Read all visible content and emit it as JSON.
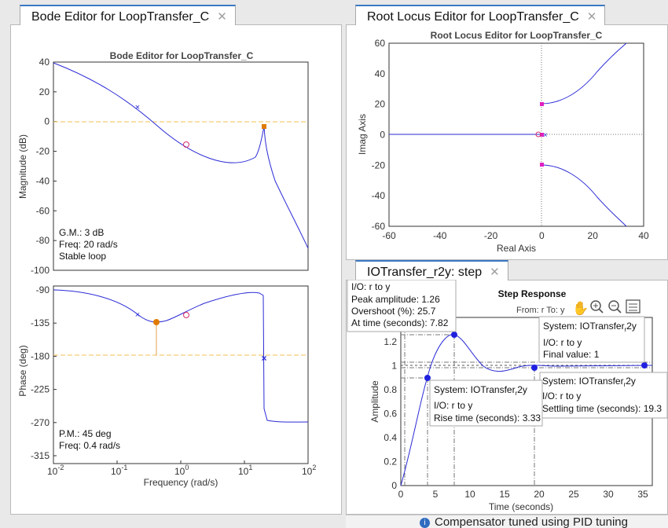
{
  "bode_tab": {
    "title": "Bode Editor for LoopTransfer_C",
    "close": "✕"
  },
  "rlocus_tab": {
    "title": "Root Locus Editor for LoopTransfer_C",
    "close": "✕"
  },
  "step_tab": {
    "title": "IOTransfer_r2y: step",
    "close": "✕"
  },
  "bode": {
    "title": "Bode Editor for LoopTransfer_C",
    "mag_ylabel": "Magnitude (dB)",
    "phase_ylabel": "Phase (deg)",
    "xlabel": "Frequency (rad/s)",
    "mag_ticks": [
      "40",
      "20",
      "0",
      "-20",
      "-40",
      "-60",
      "-80",
      "-100"
    ],
    "phase_ticks": [
      "-90",
      "-135",
      "-180",
      "-225",
      "-270",
      "-315"
    ],
    "x_ticks": [
      {
        "base": "10",
        "exp": "-2"
      },
      {
        "base": "10",
        "exp": "-1"
      },
      {
        "base": "10",
        "exp": "0"
      },
      {
        "base": "10",
        "exp": "1"
      },
      {
        "base": "10",
        "exp": "2"
      }
    ],
    "gm_lines": [
      "G.M.: 3 dB",
      "Freq: 20 rad/s",
      "Stable loop"
    ],
    "pm_lines": [
      "P.M.: 45 deg",
      "Freq: 0.4 rad/s"
    ]
  },
  "rlocus": {
    "title": "Root Locus Editor for LoopTransfer_C",
    "xlabel": "Real Axis",
    "ylabel": "Imag Axis",
    "x_ticks": [
      "-60",
      "-40",
      "-20",
      "0",
      "20",
      "40"
    ],
    "y_ticks": [
      "60",
      "40",
      "20",
      "0",
      "-20",
      "-40",
      "-60"
    ]
  },
  "step": {
    "title": "Step Response",
    "io_from_to": "From: r  To: y",
    "xlabel": "Time (seconds)",
    "ylabel": "Amplitude",
    "x_ticks": [
      "0",
      "5",
      "10",
      "15",
      "20",
      "25",
      "30",
      "35"
    ],
    "y_ticks": [
      "1.2",
      "1",
      "0.8",
      "0.6",
      "0.4",
      "0.2",
      "0"
    ],
    "peak_tip": [
      "I/O: r to y",
      "Peak amplitude: 1.26",
      "Overshoot (%): 25.7",
      "At time (seconds): 7.82"
    ],
    "final_tip": {
      "system": "System: IOTransfer",
      "sub": "r",
      "suffix": "2y",
      "lines": [
        "I/O: r to y",
        "Final value: 1"
      ]
    },
    "settle_tip": {
      "system": "System: IOTransfer",
      "sub": "r",
      "suffix": "2y",
      "lines": [
        "I/O: r to y",
        "Settling time (seconds): 19.3"
      ]
    },
    "rise_tip": {
      "system": "System: IOTransfer",
      "sub": "r",
      "suffix": "2y",
      "lines": [
        "I/O: r to y",
        "Rise time (seconds): 3.33"
      ]
    }
  },
  "footer": {
    "icon": "i",
    "text": "Compensator tuned using PID tuning"
  }
}
